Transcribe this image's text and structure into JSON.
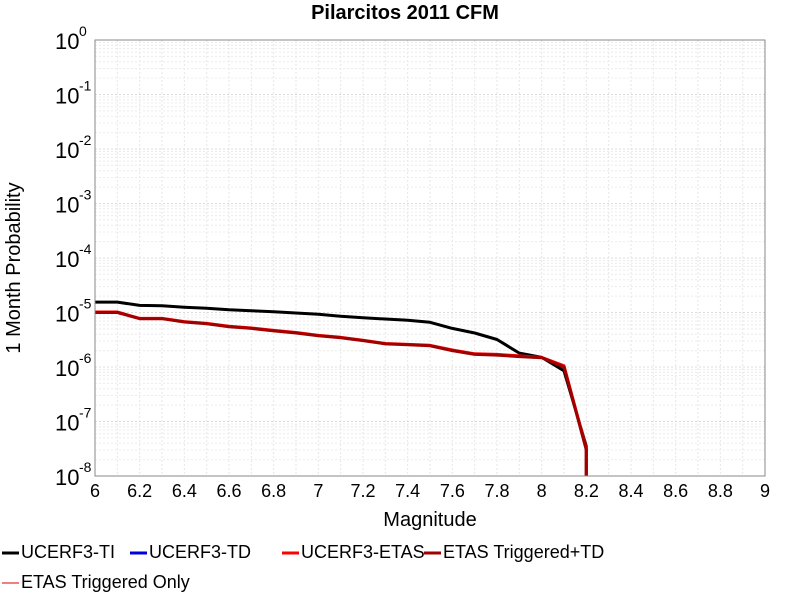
{
  "chart_data": {
    "type": "line",
    "title": "Pilarcitos 2011 CFM",
    "xlabel": "Magnitude",
    "ylabel": "1 Month Probability",
    "xlim": [
      6,
      9
    ],
    "ylim": [
      1e-08,
      1
    ],
    "yscale": "log",
    "grid": true,
    "legend_position": "bottom",
    "x_ticks": [
      "6",
      "6.2",
      "6.4",
      "6.6",
      "6.8",
      "7",
      "7.2",
      "7.4",
      "7.6",
      "7.8",
      "8",
      "8.2",
      "8.4",
      "8.6",
      "8.8",
      "9"
    ],
    "y_ticks": [
      {
        "base": "10",
        "exp": "0"
      },
      {
        "base": "10",
        "exp": "-1"
      },
      {
        "base": "10",
        "exp": "-2"
      },
      {
        "base": "10",
        "exp": "-3"
      },
      {
        "base": "10",
        "exp": "-4"
      },
      {
        "base": "10",
        "exp": "-5"
      },
      {
        "base": "10",
        "exp": "-6"
      },
      {
        "base": "10",
        "exp": "-7"
      },
      {
        "base": "10",
        "exp": "-8"
      }
    ],
    "series": [
      {
        "name": "UCERF3-TI",
        "color": "#000000",
        "x": [
          6.0,
          6.1,
          6.2,
          6.3,
          6.4,
          6.5,
          6.6,
          6.7,
          6.8,
          6.9,
          7.0,
          7.1,
          7.2,
          7.3,
          7.4,
          7.5,
          7.6,
          7.7,
          7.8,
          7.9,
          8.0,
          8.1,
          8.2
        ],
        "y": [
          1.55e-05,
          1.55e-05,
          1.35e-05,
          1.33e-05,
          1.25e-05,
          1.2e-05,
          1.12e-05,
          1.08e-05,
          1.03e-05,
          9.8e-06,
          9.3e-06,
          8.5e-06,
          8e-06,
          7.6e-06,
          7.2e-06,
          6.6e-06,
          5.1e-06,
          4.2e-06,
          3.2e-06,
          1.8e-06,
          1.5e-06,
          8.5e-07,
          3.5e-08
        ]
      },
      {
        "name": "UCERF3-TD",
        "color": "#0000d8",
        "x": [],
        "y": []
      },
      {
        "name": "UCERF3-ETAS",
        "color": "#ff0000",
        "x": [
          6.0,
          6.1,
          6.2,
          6.3,
          6.4,
          6.5,
          6.6,
          6.7,
          6.8,
          6.9,
          7.0,
          7.1,
          7.2,
          7.3,
          7.4,
          7.5,
          7.6,
          7.7,
          7.8,
          7.9,
          8.0,
          8.1,
          8.2
        ],
        "y": [
          1.02e-05,
          1.02e-05,
          7.8e-06,
          7.8e-06,
          6.8e-06,
          6.3e-06,
          5.6e-06,
          5.2e-06,
          4.7e-06,
          4.3e-06,
          3.8e-06,
          3.5e-06,
          3.1e-06,
          2.7e-06,
          2.6e-06,
          2.5e-06,
          2.05e-06,
          1.75e-06,
          1.7e-06,
          1.6e-06,
          1.5e-06,
          1.05e-06,
          3.2e-08
        ]
      },
      {
        "name": "ETAS Triggered+TD",
        "color": "#a00000",
        "x": [
          6.0,
          6.1,
          6.2,
          6.3,
          6.4,
          6.5,
          6.6,
          6.7,
          6.8,
          6.9,
          7.0,
          7.1,
          7.2,
          7.3,
          7.4,
          7.5,
          7.6,
          7.7,
          7.8,
          7.9,
          8.0,
          8.1,
          8.2
        ],
        "y": [
          1e-05,
          1e-05,
          7.7e-06,
          7.7e-06,
          6.7e-06,
          6.2e-06,
          5.5e-06,
          5.1e-06,
          4.6e-06,
          4.2e-06,
          3.75e-06,
          3.45e-06,
          3.05e-06,
          2.65e-06,
          2.55e-06,
          2.45e-06,
          2e-06,
          1.7e-06,
          1.65e-06,
          1.55e-06,
          1.48e-06,
          1e-06,
          3e-08
        ]
      },
      {
        "name": "ETAS Triggered Only",
        "color": "#f08080",
        "x": [],
        "y": []
      }
    ]
  }
}
